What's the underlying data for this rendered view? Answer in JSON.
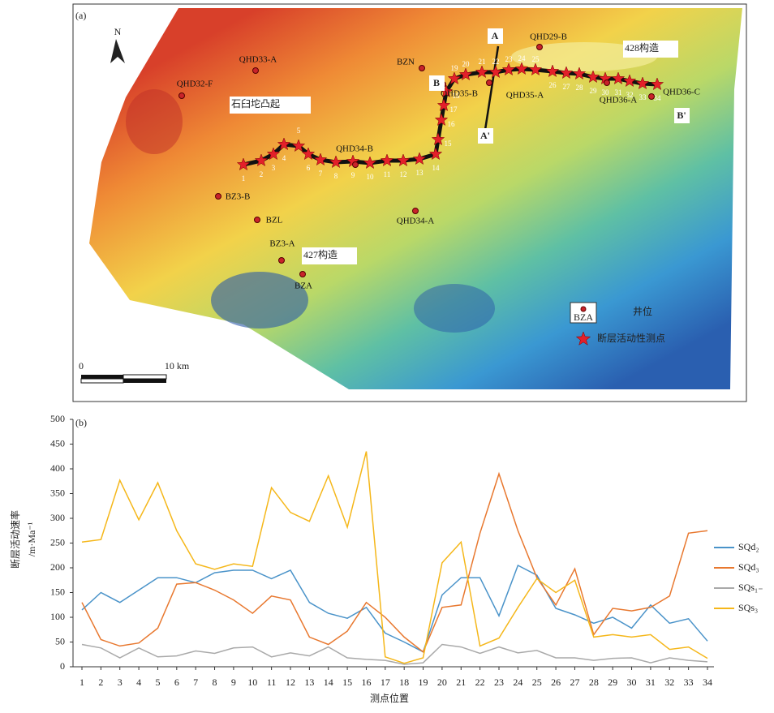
{
  "map": {
    "panel_label": "(a)",
    "north": "N",
    "wells": [
      "QHD33-A",
      "QHD32-F",
      "BZN",
      "QHD29-B",
      "QHD35-B",
      "QHD35-A",
      "QHD36-A",
      "QHD36-C",
      "QHD34-B",
      "BZ3-B",
      "BZL",
      "BZ3-A",
      "BZA",
      "QHD34-A"
    ],
    "regions": [
      "石臼坨凸起",
      "427构造",
      "428构造"
    ],
    "sections": [
      "A",
      "A'",
      "B",
      "B'"
    ],
    "points": [
      1,
      2,
      3,
      4,
      5,
      6,
      7,
      8,
      9,
      10,
      11,
      12,
      13,
      14,
      15,
      16,
      17,
      18,
      19,
      20,
      21,
      22,
      23,
      24,
      25,
      26,
      27,
      28,
      29,
      30,
      31,
      32,
      33,
      34
    ],
    "scale": [
      "0",
      "10 km"
    ],
    "legend": {
      "icon": "BZA",
      "well": "井位",
      "point": "断层活动性测点"
    }
  },
  "chart_data": {
    "type": "line",
    "panel_label": "(b)",
    "ylabel": "断层活动速率",
    "ylabel_unit": "/m·Ma⁻¹",
    "xlabel": "测点位置",
    "categories": [
      1,
      2,
      3,
      4,
      5,
      6,
      7,
      8,
      9,
      10,
      11,
      12,
      13,
      14,
      15,
      16,
      17,
      18,
      19,
      20,
      21,
      22,
      23,
      24,
      25,
      26,
      27,
      28,
      29,
      30,
      31,
      32,
      33,
      34
    ],
    "ylim": [
      0,
      500
    ],
    "yticks": [
      0,
      50,
      100,
      150,
      200,
      250,
      300,
      350,
      400,
      450,
      500
    ],
    "series": [
      {
        "name": "SQd₂",
        "color": "#4a93c9",
        "values": [
          115,
          150,
          130,
          155,
          180,
          180,
          170,
          190,
          195,
          195,
          178,
          195,
          130,
          108,
          98,
          120,
          68,
          50,
          30,
          145,
          180,
          180,
          103,
          205,
          185,
          118,
          105,
          88,
          100,
          78,
          125,
          88,
          97,
          52
        ]
      },
      {
        "name": "SQd₃",
        "color": "#e8782f",
        "values": [
          130,
          55,
          42,
          48,
          78,
          167,
          170,
          155,
          135,
          108,
          143,
          135,
          60,
          45,
          72,
          130,
          100,
          60,
          30,
          120,
          125,
          270,
          390,
          275,
          180,
          125,
          198,
          65,
          118,
          113,
          120,
          143,
          270,
          275
        ]
      },
      {
        "name": "SQs₁₋",
        "color": "#a9a9a9",
        "values": [
          45,
          38,
          18,
          38,
          20,
          22,
          32,
          27,
          38,
          40,
          20,
          28,
          22,
          40,
          18,
          15,
          13,
          5,
          8,
          45,
          40,
          27,
          40,
          28,
          33,
          18,
          18,
          13,
          17,
          18,
          8,
          18,
          13,
          10
        ]
      },
      {
        "name": "SQs₃",
        "color": "#f5b71a",
        "values": [
          252,
          257,
          377,
          297,
          372,
          275,
          208,
          197,
          208,
          203,
          362,
          312,
          294,
          386,
          282,
          435,
          20,
          7,
          18,
          210,
          252,
          42,
          58,
          120,
          178,
          150,
          175,
          60,
          65,
          60,
          65,
          35,
          40,
          17
        ]
      }
    ]
  }
}
